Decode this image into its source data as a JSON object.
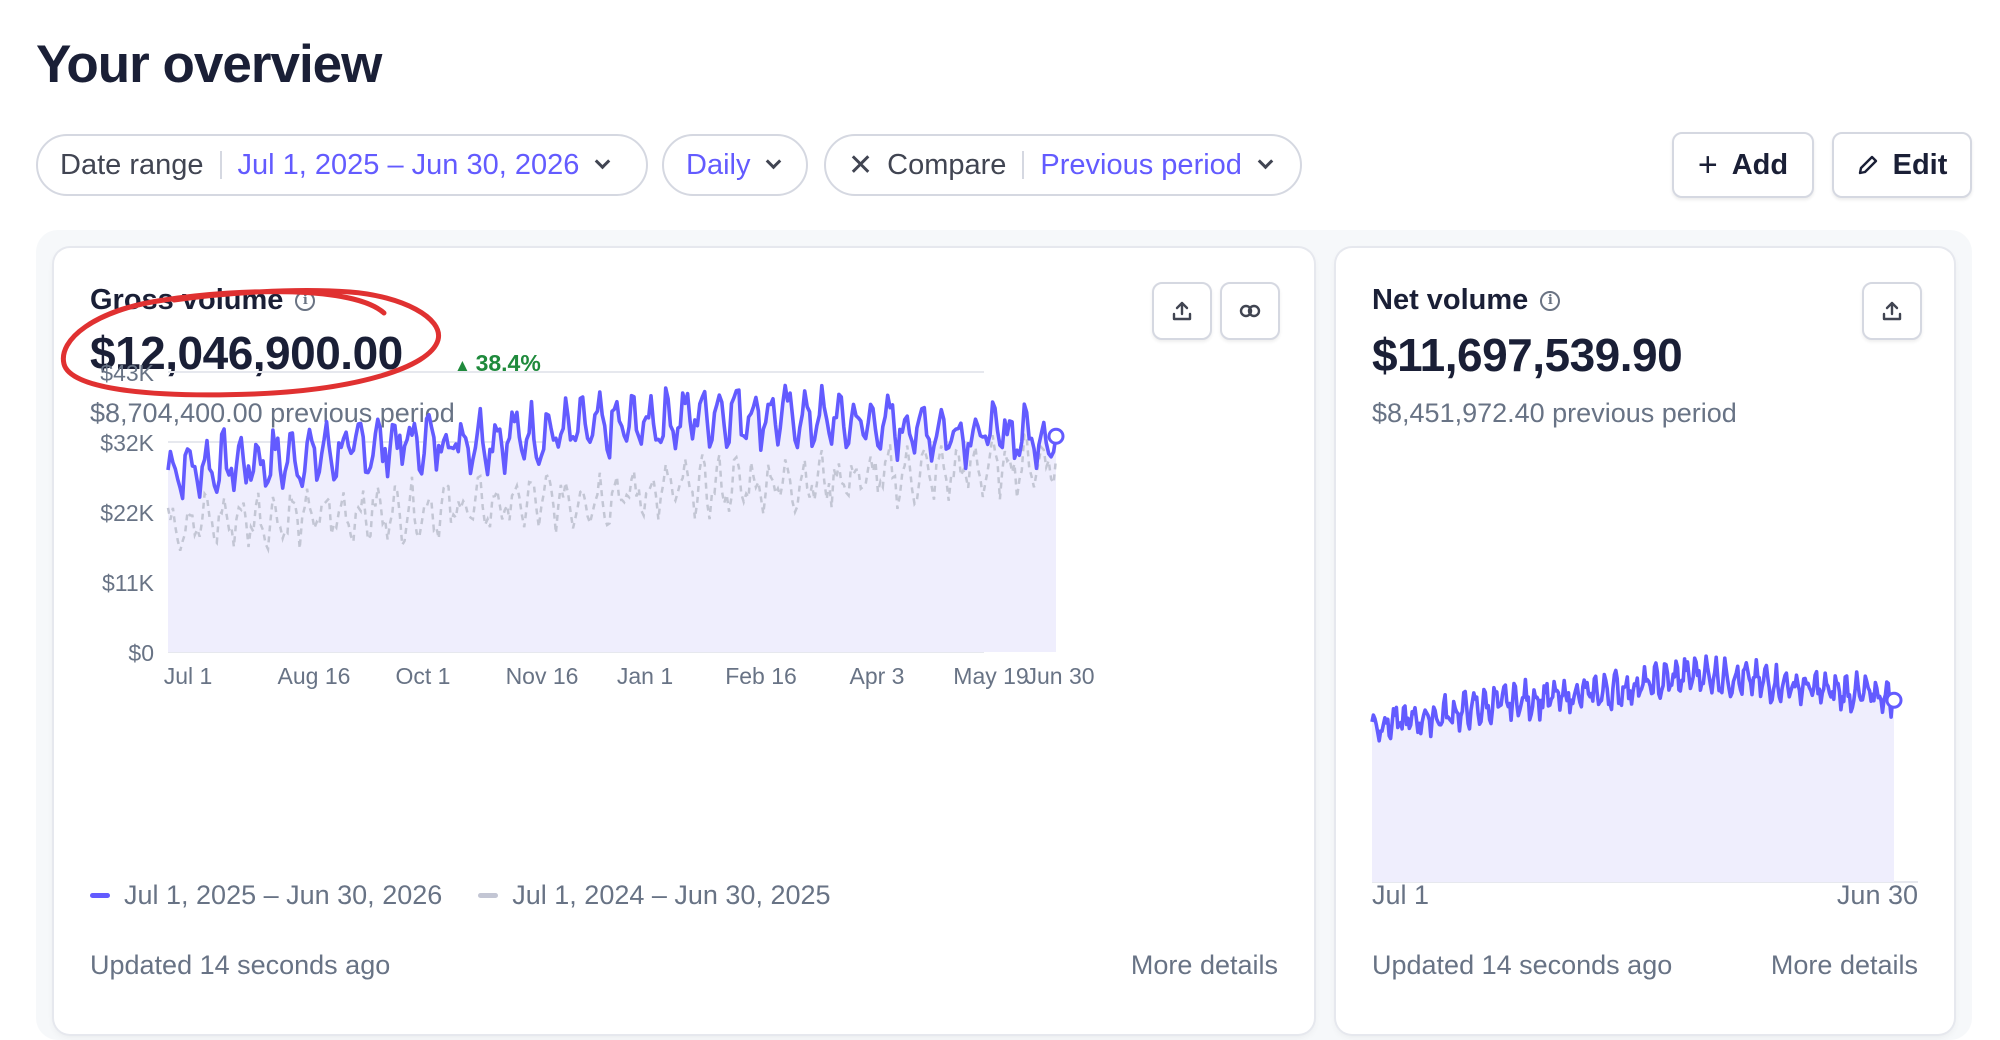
{
  "page": {
    "title": "Your overview"
  },
  "filters": {
    "date_range_label": "Date range",
    "date_range_value": "Jul 1, 2025 – Jun 30, 2026",
    "interval_value": "Daily",
    "compare_label": "Compare",
    "compare_value": "Previous period"
  },
  "actions": {
    "add_label": "Add",
    "edit_label": "Edit"
  },
  "cards": {
    "gross": {
      "title": "Gross volume",
      "value": "$12,046,900.00",
      "delta": "38.4%",
      "previous": "$8,704,400.00 previous period",
      "updated": "Updated 14 seconds ago",
      "more": "More details",
      "legend_current": "Jul 1, 2025 – Jun 30, 2026",
      "legend_previous": "Jul 1, 2024 – Jun 30, 2025"
    },
    "net": {
      "title": "Net volume",
      "value": "$11,697,539.90",
      "previous": "$8,451,972.40 previous period",
      "updated": "Updated 14 seconds ago",
      "more": "More details",
      "x_start": "Jul 1",
      "x_end": "Jun 30"
    }
  },
  "colors": {
    "accent": "#635bff",
    "previous_series": "#c3c6d4",
    "positive": "#1f8a3c",
    "annotation": "#e03131"
  },
  "icons": {
    "add": "plus-icon",
    "edit": "pencil-icon",
    "export": "upload-icon",
    "compare": "link-icon",
    "info": "info-icon",
    "clear": "x-icon",
    "dropdown": "chevron-down-icon"
  },
  "chart_data": [
    {
      "type": "line",
      "ylim": [
        0,
        43000
      ],
      "y_ticks": [
        "$0",
        "$11K",
        "$22K",
        "$32K",
        "$43K"
      ],
      "x_ticks": [
        "Jul 1",
        "Aug 16",
        "Oct 1",
        "Nov 16",
        "Jan 1",
        "Feb 16",
        "Apr 3",
        "May 19",
        "Jun 30"
      ],
      "series": [
        {
          "name": "Jul 1, 2025 – Jun 30, 2026",
          "x": [
            "Jul 1",
            "Aug 16",
            "Oct 1",
            "Nov 16",
            "Jan 1",
            "Feb 16",
            "Apr 3",
            "May 19",
            "Jun 30"
          ],
          "values": [
            28000,
            29500,
            32000,
            33000,
            34500,
            37000,
            35500,
            34000,
            33000
          ]
        },
        {
          "name": "Jul 1, 2024 – Jun 30, 2025",
          "x": [
            "Jul 1",
            "Aug 16",
            "Oct 1",
            "Nov 16",
            "Jan 1",
            "Feb 16",
            "Apr 3",
            "May 19",
            "Jun 30"
          ],
          "values": [
            20000,
            20500,
            21500,
            22500,
            24000,
            25500,
            26500,
            27500,
            29500
          ]
        }
      ]
    },
    {
      "type": "line",
      "x_ticks": [
        "Jul 1",
        "Jun 30"
      ],
      "series": [
        {
          "x": [
            "Jul 1",
            "Aug 16",
            "Oct 1",
            "Nov 16",
            "Jan 1",
            "Feb 16",
            "Apr 3",
            "May 19",
            "Jun 30"
          ],
          "values": [
            27000,
            28500,
            31000,
            32000,
            33500,
            36000,
            34500,
            33000,
            32000
          ]
        }
      ]
    }
  ]
}
